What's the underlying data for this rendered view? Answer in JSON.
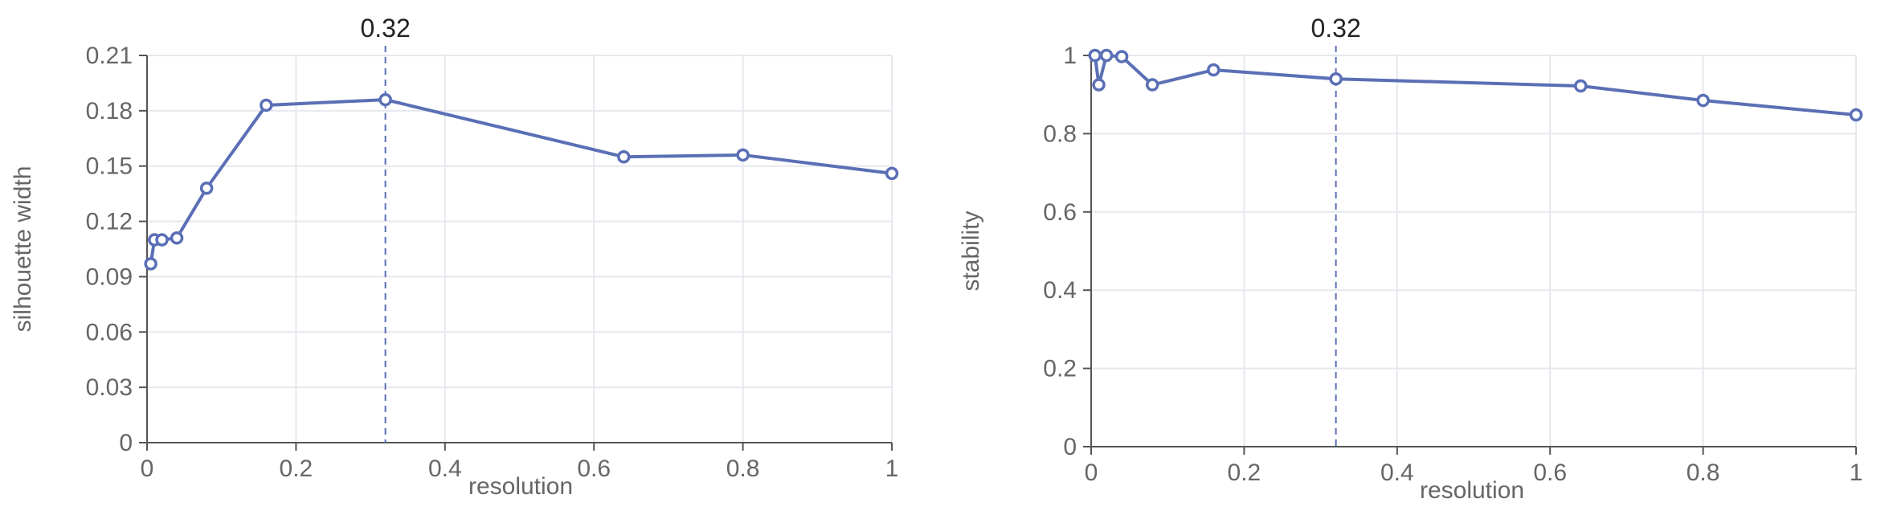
{
  "chart_data": [
    {
      "type": "line",
      "xlabel": "resolution",
      "ylabel": "silhouette width",
      "xlim": [
        0,
        1
      ],
      "ylim": [
        0,
        0.21
      ],
      "xticks": [
        0,
        0.2,
        0.4,
        0.6,
        0.8,
        1
      ],
      "xtick_labels": [
        "0",
        "0.2",
        "0.4",
        "0.6",
        "0.8",
        "1"
      ],
      "yticks": [
        0,
        0.03,
        0.06,
        0.09,
        0.12,
        0.15,
        0.18,
        0.21
      ],
      "ytick_labels": [
        "0",
        "0.03",
        "0.06",
        "0.09",
        "0.12",
        "0.15",
        "0.18",
        "0.21"
      ],
      "grid": true,
      "color": "#5a6fb5",
      "series": [
        {
          "x": [
            0.005,
            0.01,
            0.02,
            0.04,
            0.08,
            0.16,
            0.32,
            0.64,
            0.8,
            1.0
          ],
          "values": [
            0.097,
            0.11,
            0.11,
            0.111,
            0.138,
            0.183,
            0.186,
            0.155,
            0.156,
            0.146
          ]
        }
      ],
      "vline": {
        "x": 0.32,
        "label": "0.32"
      }
    },
    {
      "type": "line",
      "xlabel": "resolution",
      "ylabel": "stability",
      "xlim": [
        0,
        1
      ],
      "ylim": [
        0,
        1
      ],
      "xticks": [
        0,
        0.2,
        0.4,
        0.6,
        0.8,
        1
      ],
      "xtick_labels": [
        "0",
        "0.2",
        "0.4",
        "0.6",
        "0.8",
        "1"
      ],
      "yticks": [
        0,
        0.2,
        0.4,
        0.6,
        0.8,
        1
      ],
      "ytick_labels": [
        "0",
        "0.2",
        "0.4",
        "0.6",
        "0.8",
        "1"
      ],
      "grid": true,
      "color": "#5a6fb5",
      "series": [
        {
          "x": [
            0.005,
            0.01,
            0.02,
            0.04,
            0.08,
            0.16,
            0.32,
            0.64,
            0.8,
            1.0
          ],
          "values": [
            1.0,
            0.925,
            1.0,
            0.997,
            0.925,
            0.963,
            0.94,
            0.922,
            0.885,
            0.848
          ]
        }
      ],
      "vline": {
        "x": 0.32,
        "label": "0.32"
      }
    }
  ]
}
